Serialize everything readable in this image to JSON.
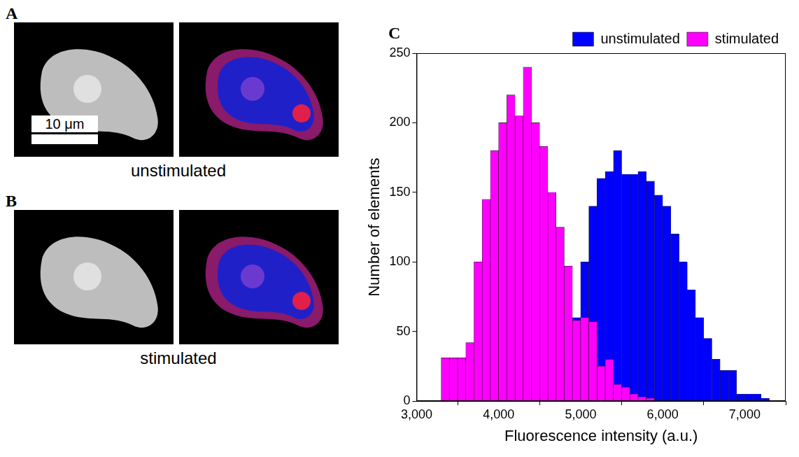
{
  "panels": [
    {
      "letter": "A",
      "caption": "unstimulated",
      "scale_bar": "10 μm"
    },
    {
      "letter": "B",
      "caption": "stimulated"
    },
    {
      "letter": "C"
    }
  ],
  "chart_data": {
    "type": "histogram",
    "x_label": "Fluorescence intensity (a.u.)",
    "y_label": "Number of elements",
    "bins": [
      3300,
      3400,
      3500,
      3600,
      3700,
      3800,
      3900,
      4000,
      4100,
      4200,
      4300,
      4400,
      4500,
      4600,
      4700,
      4800,
      4900,
      5000,
      5100,
      5200,
      5300,
      5400,
      5500,
      5600,
      5700,
      5800,
      5900,
      6000,
      6100,
      6200,
      6300,
      6400,
      6500,
      6600,
      6700,
      6800,
      6900,
      7000,
      7100,
      7200,
      7300
    ],
    "series": [
      {
        "name": "unstimulated",
        "color": "#0000ff",
        "values": [
          0,
          0,
          0,
          0,
          0,
          0,
          0,
          0,
          0,
          0,
          0,
          0,
          0,
          5,
          15,
          30,
          60,
          100,
          140,
          160,
          165,
          180,
          163,
          163,
          165,
          158,
          148,
          140,
          120,
          100,
          80,
          60,
          45,
          30,
          22,
          22,
          5,
          5,
          5,
          2
        ]
      },
      {
        "name": "stimulated",
        "color": "#ff00ff",
        "values": [
          31,
          31,
          31,
          42,
          100,
          145,
          180,
          200,
          220,
          205,
          240,
          200,
          183,
          150,
          125,
          97,
          58,
          60,
          57,
          25,
          30,
          12,
          10,
          5,
          3,
          2,
          0,
          0,
          0,
          0,
          0,
          0,
          0,
          0,
          0,
          0,
          0,
          0,
          0,
          0
        ]
      }
    ],
    "xlim": [
      3000,
      7500
    ],
    "xticks": [
      {
        "value": 3000,
        "label": "3,000"
      },
      {
        "value": 4000,
        "label": "4,000"
      },
      {
        "value": 5000,
        "label": "5,000"
      },
      {
        "value": 6000,
        "label": "6,000"
      },
      {
        "value": 7000,
        "label": "7,000"
      }
    ],
    "ylim": [
      0,
      250
    ],
    "yticks": [
      0,
      50,
      100,
      150,
      200,
      250
    ],
    "grid": false,
    "legend": "top right"
  }
}
